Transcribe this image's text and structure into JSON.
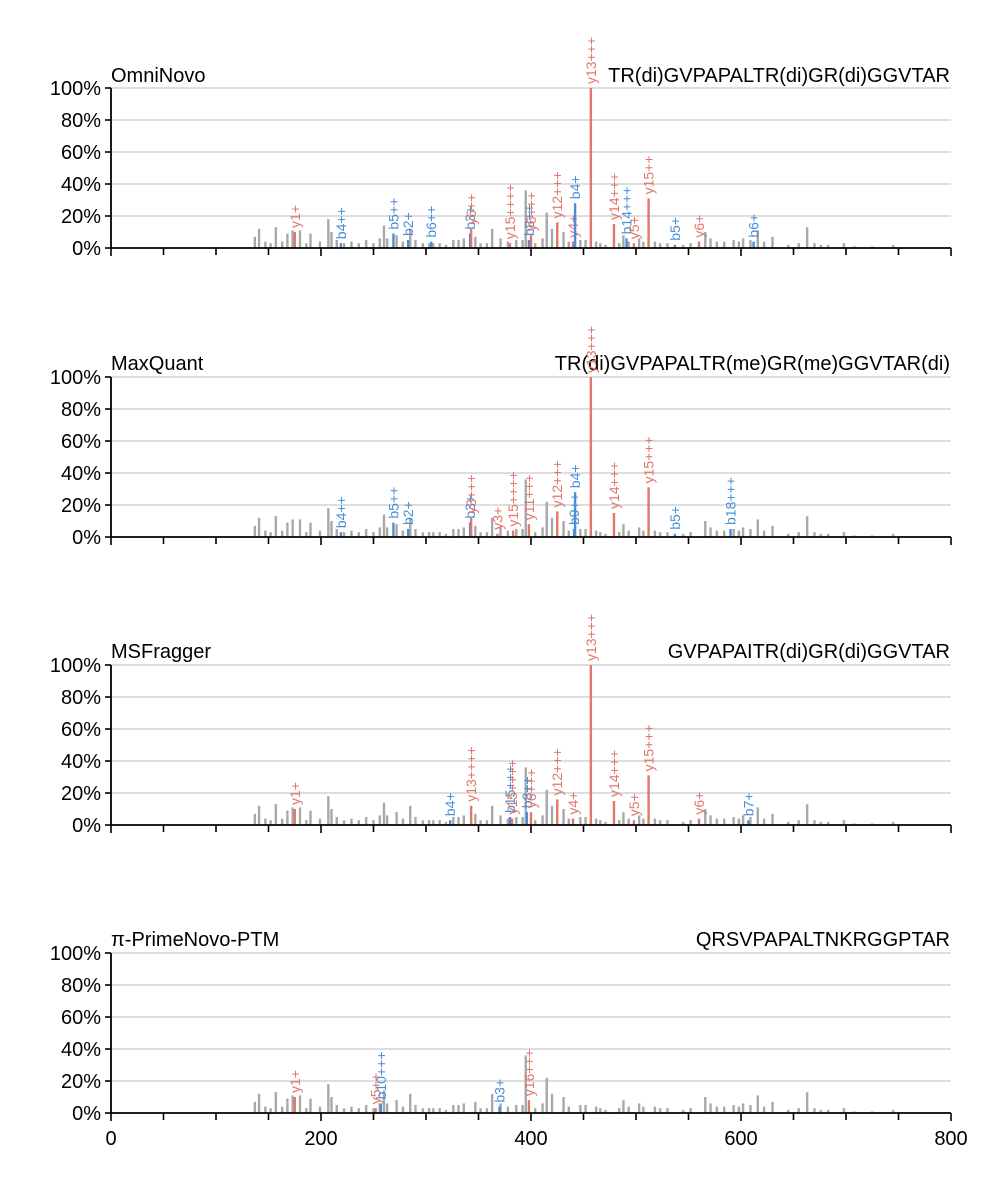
{
  "figure": {
    "colors": {
      "y_ion": "#e0766c",
      "b_ion": "#4a8ed6",
      "unmatched": "#a8a8a8",
      "grid": "#d4d4d4",
      "axis": "#000000"
    },
    "x_ticks": [
      "0",
      "200",
      "400",
      "600",
      "800"
    ],
    "y_ticks": [
      "0%",
      "20%",
      "40%",
      "60%",
      "80%",
      "100%"
    ]
  },
  "chart_data": [
    {
      "type": "bar",
      "method": "OmniNovo",
      "peptide": "TR(di)GVPAPALTR(di)GR(di)GGVTAR",
      "xlim": [
        0,
        800
      ],
      "ylim": [
        0,
        100
      ],
      "x_ticks": [
        0,
        200,
        400,
        600,
        800
      ],
      "y_ticks": [
        0,
        20,
        40,
        60,
        80,
        100
      ],
      "grid": "horizontal",
      "annotated_peaks": [
        {
          "mz": 175,
          "intensity": 10,
          "label": "y1+",
          "ion": "y"
        },
        {
          "mz": 219,
          "intensity": 3,
          "label": "b4++",
          "ion": "b"
        },
        {
          "mz": 269,
          "intensity": 9,
          "label": "b5++",
          "ion": "b"
        },
        {
          "mz": 283,
          "intensity": 5,
          "label": "b2+",
          "ion": "b"
        },
        {
          "mz": 305,
          "intensity": 4,
          "label": "b6++",
          "ion": "b"
        },
        {
          "mz": 342,
          "intensity": 9,
          "label": "b3+",
          "ion": "b"
        },
        {
          "mz": 343,
          "intensity": 12,
          "label": "y6++",
          "ion": "y"
        },
        {
          "mz": 380,
          "intensity": 3,
          "label": "y15++++",
          "ion": "y"
        },
        {
          "mz": 398,
          "intensity": 5,
          "label": "b8++",
          "ion": "b"
        },
        {
          "mz": 400,
          "intensity": 8,
          "label": "y6+++",
          "ion": "y"
        },
        {
          "mz": 425,
          "intensity": 16,
          "label": "y12+++",
          "ion": "y"
        },
        {
          "mz": 440,
          "intensity": 4,
          "label": "y4+",
          "ion": "y"
        },
        {
          "mz": 442,
          "intensity": 28,
          "label": "b4+",
          "ion": "b"
        },
        {
          "mz": 457,
          "intensity": 100,
          "label": "y13+++",
          "ion": "y"
        },
        {
          "mz": 479,
          "intensity": 15,
          "label": "y14+++",
          "ion": "y"
        },
        {
          "mz": 491,
          "intensity": 6,
          "label": "b14+++",
          "ion": "b"
        },
        {
          "mz": 498,
          "intensity": 3,
          "label": "y5+",
          "ion": "y"
        },
        {
          "mz": 512,
          "intensity": 31,
          "label": "y15++",
          "ion": "y"
        },
        {
          "mz": 537,
          "intensity": 2,
          "label": "b5+",
          "ion": "b"
        },
        {
          "mz": 560,
          "intensity": 4,
          "label": "y6+",
          "ion": "y"
        },
        {
          "mz": 612,
          "intensity": 4,
          "label": "b6+",
          "ion": "b"
        }
      ]
    },
    {
      "type": "bar",
      "method": "MaxQuant",
      "peptide": "TR(di)GVPAPALTR(me)GR(me)GGVTAR(di)",
      "xlim": [
        0,
        800
      ],
      "ylim": [
        0,
        100
      ],
      "x_ticks": [
        0,
        200,
        400,
        600,
        800
      ],
      "y_ticks": [
        0,
        20,
        40,
        60,
        80,
        100
      ],
      "grid": "horizontal",
      "annotated_peaks": [
        {
          "mz": 219,
          "intensity": 3,
          "label": "b4++",
          "ion": "b"
        },
        {
          "mz": 269,
          "intensity": 9,
          "label": "b5++",
          "ion": "b"
        },
        {
          "mz": 283,
          "intensity": 5,
          "label": "b2+",
          "ion": "b"
        },
        {
          "mz": 342,
          "intensity": 9,
          "label": "b3+",
          "ion": "b"
        },
        {
          "mz": 343,
          "intensity": 12,
          "label": "y3+++",
          "ion": "y"
        },
        {
          "mz": 368,
          "intensity": 2,
          "label": "y3+",
          "ion": "y"
        },
        {
          "mz": 383,
          "intensity": 4,
          "label": "y15++++",
          "ion": "y"
        },
        {
          "mz": 398,
          "intensity": 8,
          "label": "y11+++",
          "ion": "y"
        },
        {
          "mz": 425,
          "intensity": 16,
          "label": "y12+++",
          "ion": "y"
        },
        {
          "mz": 441,
          "intensity": 5,
          "label": "b9++",
          "ion": "b"
        },
        {
          "mz": 442,
          "intensity": 28,
          "label": "b4+",
          "ion": "b"
        },
        {
          "mz": 457,
          "intensity": 100,
          "label": "y13+++",
          "ion": "y"
        },
        {
          "mz": 479,
          "intensity": 15,
          "label": "y14+++",
          "ion": "y"
        },
        {
          "mz": 512,
          "intensity": 31,
          "label": "y15+++",
          "ion": "y"
        },
        {
          "mz": 537,
          "intensity": 2,
          "label": "b5+",
          "ion": "b"
        },
        {
          "mz": 590,
          "intensity": 5,
          "label": "b18+++",
          "ion": "b"
        }
      ]
    },
    {
      "type": "bar",
      "method": "MSFragger",
      "peptide": "GVPAPAITR(di)GR(di)GGVTAR",
      "xlim": [
        0,
        800
      ],
      "ylim": [
        0,
        100
      ],
      "x_ticks": [
        0,
        200,
        400,
        600,
        800
      ],
      "y_ticks": [
        0,
        20,
        40,
        60,
        80,
        100
      ],
      "grid": "horizontal",
      "annotated_peaks": [
        {
          "mz": 175,
          "intensity": 10,
          "label": "y1+",
          "ion": "y"
        },
        {
          "mz": 323,
          "intensity": 3,
          "label": "b4+",
          "ion": "b"
        },
        {
          "mz": 343,
          "intensity": 12,
          "label": "y13++++",
          "ion": "y"
        },
        {
          "mz": 380,
          "intensity": 5,
          "label": "b15+++",
          "ion": "b"
        },
        {
          "mz": 382,
          "intensity": 4,
          "label": "y15++++",
          "ion": "y"
        },
        {
          "mz": 396,
          "intensity": 8,
          "label": "b8++",
          "ion": "b"
        },
        {
          "mz": 400,
          "intensity": 8,
          "label": "y6+++",
          "ion": "y"
        },
        {
          "mz": 425,
          "intensity": 16,
          "label": "y12+++",
          "ion": "y"
        },
        {
          "mz": 440,
          "intensity": 4,
          "label": "y4+",
          "ion": "y"
        },
        {
          "mz": 457,
          "intensity": 100,
          "label": "y13+++",
          "ion": "y"
        },
        {
          "mz": 479,
          "intensity": 15,
          "label": "y14+++",
          "ion": "y"
        },
        {
          "mz": 498,
          "intensity": 3,
          "label": "y5+",
          "ion": "y"
        },
        {
          "mz": 512,
          "intensity": 31,
          "label": "y15+++",
          "ion": "y"
        },
        {
          "mz": 560,
          "intensity": 4,
          "label": "y6+",
          "ion": "y"
        },
        {
          "mz": 607,
          "intensity": 3,
          "label": "b7+",
          "ion": "b"
        }
      ]
    },
    {
      "type": "bar",
      "method": "π-PrimeNovo-PTM",
      "peptide": "QRSVPAPALTNKRGGPTAR",
      "xlim": [
        0,
        800
      ],
      "ylim": [
        0,
        100
      ],
      "x_ticks": [
        0,
        200,
        400,
        600,
        800
      ],
      "y_ticks": [
        0,
        20,
        40,
        60,
        80,
        100
      ],
      "grid": "horizontal",
      "annotated_peaks": [
        {
          "mz": 175,
          "intensity": 10,
          "label": "y1+",
          "ion": "y"
        },
        {
          "mz": 252,
          "intensity": 3,
          "label": "y5++",
          "ion": "y"
        },
        {
          "mz": 257,
          "intensity": 6,
          "label": "b10+++",
          "ion": "b"
        },
        {
          "mz": 370,
          "intensity": 4,
          "label": "b3+",
          "ion": "b"
        },
        {
          "mz": 398,
          "intensity": 8,
          "label": "y16+++",
          "ion": "y"
        }
      ]
    }
  ],
  "background_peaks": [
    [
      137,
      7
    ],
    [
      141,
      12
    ],
    [
      147,
      4
    ],
    [
      152,
      3
    ],
    [
      157,
      13
    ],
    [
      163,
      4
    ],
    [
      168,
      9
    ],
    [
      173,
      11
    ],
    [
      180,
      11
    ],
    [
      186,
      3
    ],
    [
      190,
      9
    ],
    [
      199,
      4
    ],
    [
      207,
      18
    ],
    [
      210,
      10
    ],
    [
      215,
      5
    ],
    [
      222,
      3
    ],
    [
      229,
      4
    ],
    [
      236,
      3
    ],
    [
      243,
      5
    ],
    [
      250,
      3
    ],
    [
      256,
      6
    ],
    [
      260,
      14
    ],
    [
      263,
      6
    ],
    [
      272,
      8
    ],
    [
      278,
      4
    ],
    [
      285,
      12
    ],
    [
      290,
      5
    ],
    [
      297,
      3
    ],
    [
      303,
      3
    ],
    [
      307,
      3
    ],
    [
      313,
      3
    ],
    [
      319,
      2
    ],
    [
      326,
      5
    ],
    [
      331,
      5
    ],
    [
      336,
      6
    ],
    [
      347,
      7
    ],
    [
      352,
      3
    ],
    [
      358,
      3
    ],
    [
      363,
      12
    ],
    [
      371,
      6
    ],
    [
      378,
      4
    ],
    [
      386,
      5
    ],
    [
      392,
      5
    ],
    [
      395,
      36
    ],
    [
      404,
      3
    ],
    [
      411,
      6
    ],
    [
      415,
      22
    ],
    [
      420,
      12
    ],
    [
      431,
      10
    ],
    [
      436,
      4
    ],
    [
      447,
      5
    ],
    [
      452,
      5
    ],
    [
      462,
      4
    ],
    [
      466,
      3
    ],
    [
      471,
      2
    ],
    [
      484,
      3
    ],
    [
      488,
      8
    ],
    [
      493,
      4
    ],
    [
      503,
      6
    ],
    [
      507,
      4
    ],
    [
      518,
      4
    ],
    [
      523,
      3
    ],
    [
      530,
      3
    ],
    [
      545,
      2
    ],
    [
      552,
      3
    ],
    [
      566,
      10
    ],
    [
      571,
      6
    ],
    [
      577,
      4
    ],
    [
      584,
      4
    ],
    [
      593,
      5
    ],
    [
      598,
      4
    ],
    [
      602,
      6
    ],
    [
      609,
      5
    ],
    [
      616,
      11
    ],
    [
      622,
      4
    ],
    [
      630,
      7
    ],
    [
      645,
      2
    ],
    [
      655,
      3
    ],
    [
      663,
      13
    ],
    [
      670,
      3
    ],
    [
      676,
      2
    ],
    [
      683,
      2
    ],
    [
      698,
      3
    ],
    [
      708,
      1
    ],
    [
      725,
      1
    ],
    [
      745,
      2
    ]
  ]
}
